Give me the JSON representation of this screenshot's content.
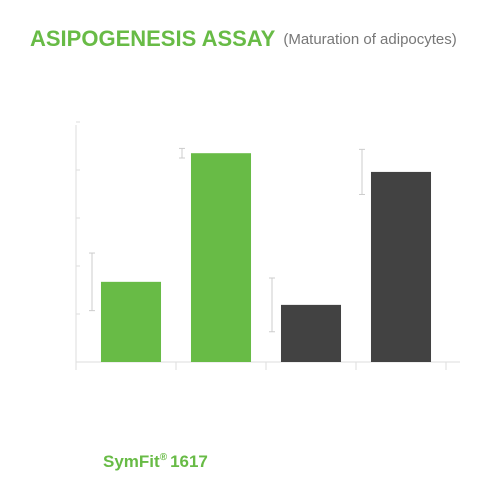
{
  "chart_data": {
    "type": "bar",
    "title": "ASIPOGENESIS ASSAY",
    "subtitle": "(Maturation of adipocytes)",
    "categories": [
      null,
      null,
      null,
      null
    ],
    "values": [
      1.67,
      4.35,
      1.19,
      3.96
    ],
    "errors": [
      0.6,
      0.1,
      0.56,
      0.47
    ],
    "colors": [
      "#68bb46",
      "#68bb46",
      "#424242",
      "#424242"
    ],
    "ylim": [
      0,
      5
    ],
    "yticks": [
      1,
      2,
      3,
      4,
      5
    ],
    "grid": false
  },
  "footer": {
    "brand": "SymFit",
    "mark": "®",
    "model": "1617"
  }
}
